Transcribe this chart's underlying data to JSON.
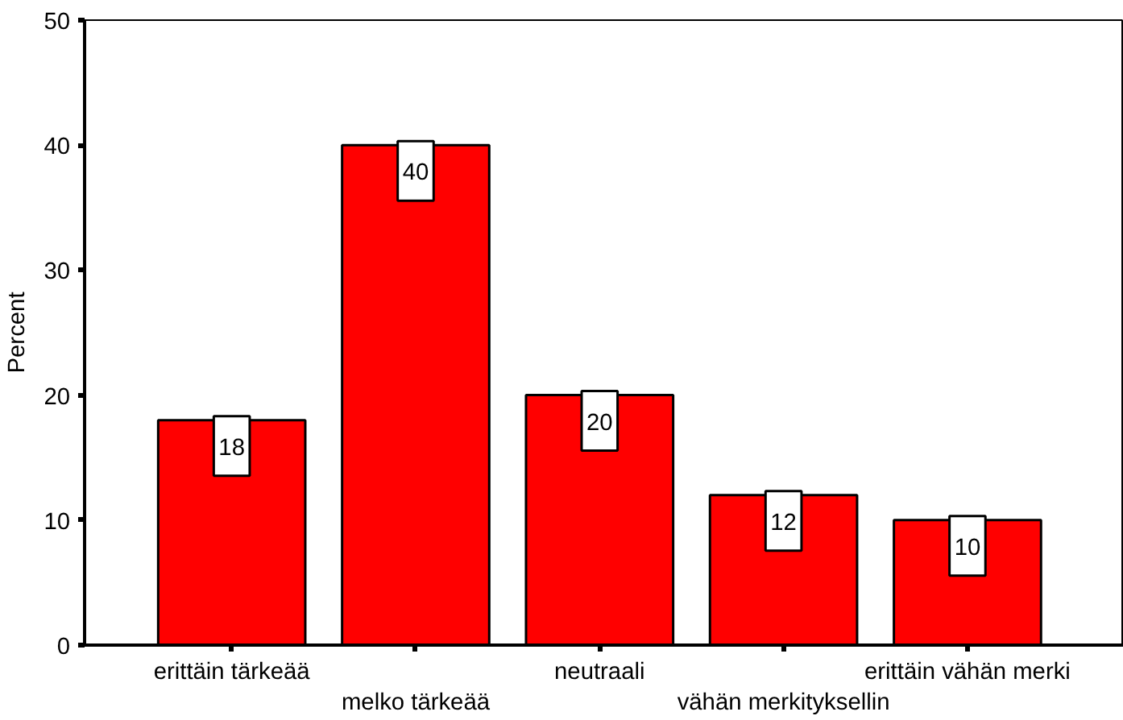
{
  "chart_data": {
    "type": "bar",
    "ylabel": "Percent",
    "categories": [
      "erittäin tärkeää",
      "melko tärkeää",
      "neutraali",
      "vähän merkityksellin",
      "erittäin vähän merki"
    ],
    "values": [
      18,
      40,
      20,
      12,
      10
    ],
    "color": "#ff0000",
    "ylim": [
      0,
      50
    ],
    "yticks": [
      0,
      10,
      20,
      30,
      40,
      50
    ],
    "grid": false,
    "data_labels": true
  }
}
